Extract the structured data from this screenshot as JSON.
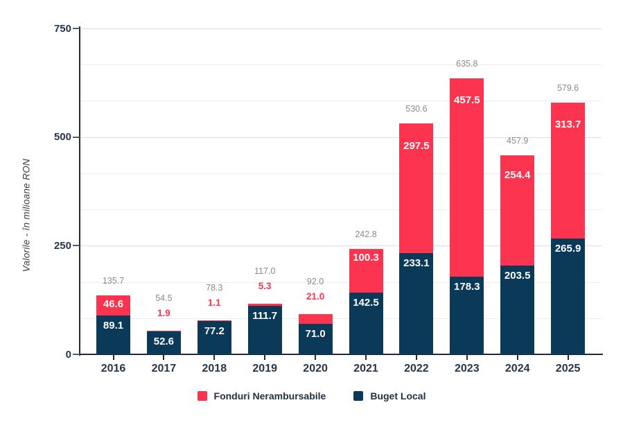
{
  "chart_data": {
    "type": "bar",
    "stacked": true,
    "title": "",
    "xlabel": "",
    "ylabel": "Valorile - în milioane RON",
    "ylim": [
      0,
      750
    ],
    "yticks": [
      0,
      250,
      500,
      750
    ],
    "ytick_labels": [
      "0",
      "250",
      "500",
      "750"
    ],
    "grid": "horizontal minor gridlines at thirds of each 250 interval",
    "legend_position": "bottom",
    "categories": [
      "2016",
      "2017",
      "2018",
      "2019",
      "2020",
      "2021",
      "2022",
      "2023",
      "2024",
      "2025"
    ],
    "series": [
      {
        "name": "Fonduri Nerambursabile",
        "color": "#fc344f",
        "values": [
          46.6,
          1.9,
          1.1,
          5.3,
          21.0,
          100.3,
          297.5,
          457.5,
          254.4,
          313.7
        ],
        "display_values": [
          "46.6",
          "1.9",
          "1.1",
          "5.3",
          "21.0",
          "100.3",
          "297.5",
          "457.5",
          "254.4",
          "313.7"
        ]
      },
      {
        "name": "Buget Local",
        "color": "#0b3a58",
        "values": [
          89.1,
          52.6,
          77.2,
          111.7,
          71.0,
          142.5,
          233.1,
          178.3,
          203.5,
          265.9
        ],
        "display_values": [
          "89.1",
          "52.6",
          "77.2",
          "111.7",
          "71.0",
          "142.5",
          "233.1",
          "178.3",
          "203.5",
          "265.9"
        ]
      }
    ],
    "totals": [
      135.7,
      54.5,
      78.3,
      117.0,
      92.0,
      242.8,
      530.6,
      635.8,
      457.9,
      579.6
    ],
    "display_totals": [
      "135.7",
      "54.5",
      "78.3",
      "117.0",
      "92.0",
      "242.8",
      "530.6",
      "635.8",
      "457.9",
      "579.6"
    ]
  },
  "legend": {
    "items": [
      {
        "label": "Fonduri Nerambursabile",
        "color": "#fc344f"
      },
      {
        "label": "Buget Local",
        "color": "#0b3a58"
      }
    ]
  },
  "colors": {
    "fonduri_red": "#fc344f",
    "buget_navy": "#0b3a58",
    "axis_line": "#1e2836",
    "tick_text": "#263649",
    "total_text": "#8a8a8a",
    "grid_minor": "#ededed",
    "grid_major": "#dddddd",
    "background": "#ffffff"
  }
}
